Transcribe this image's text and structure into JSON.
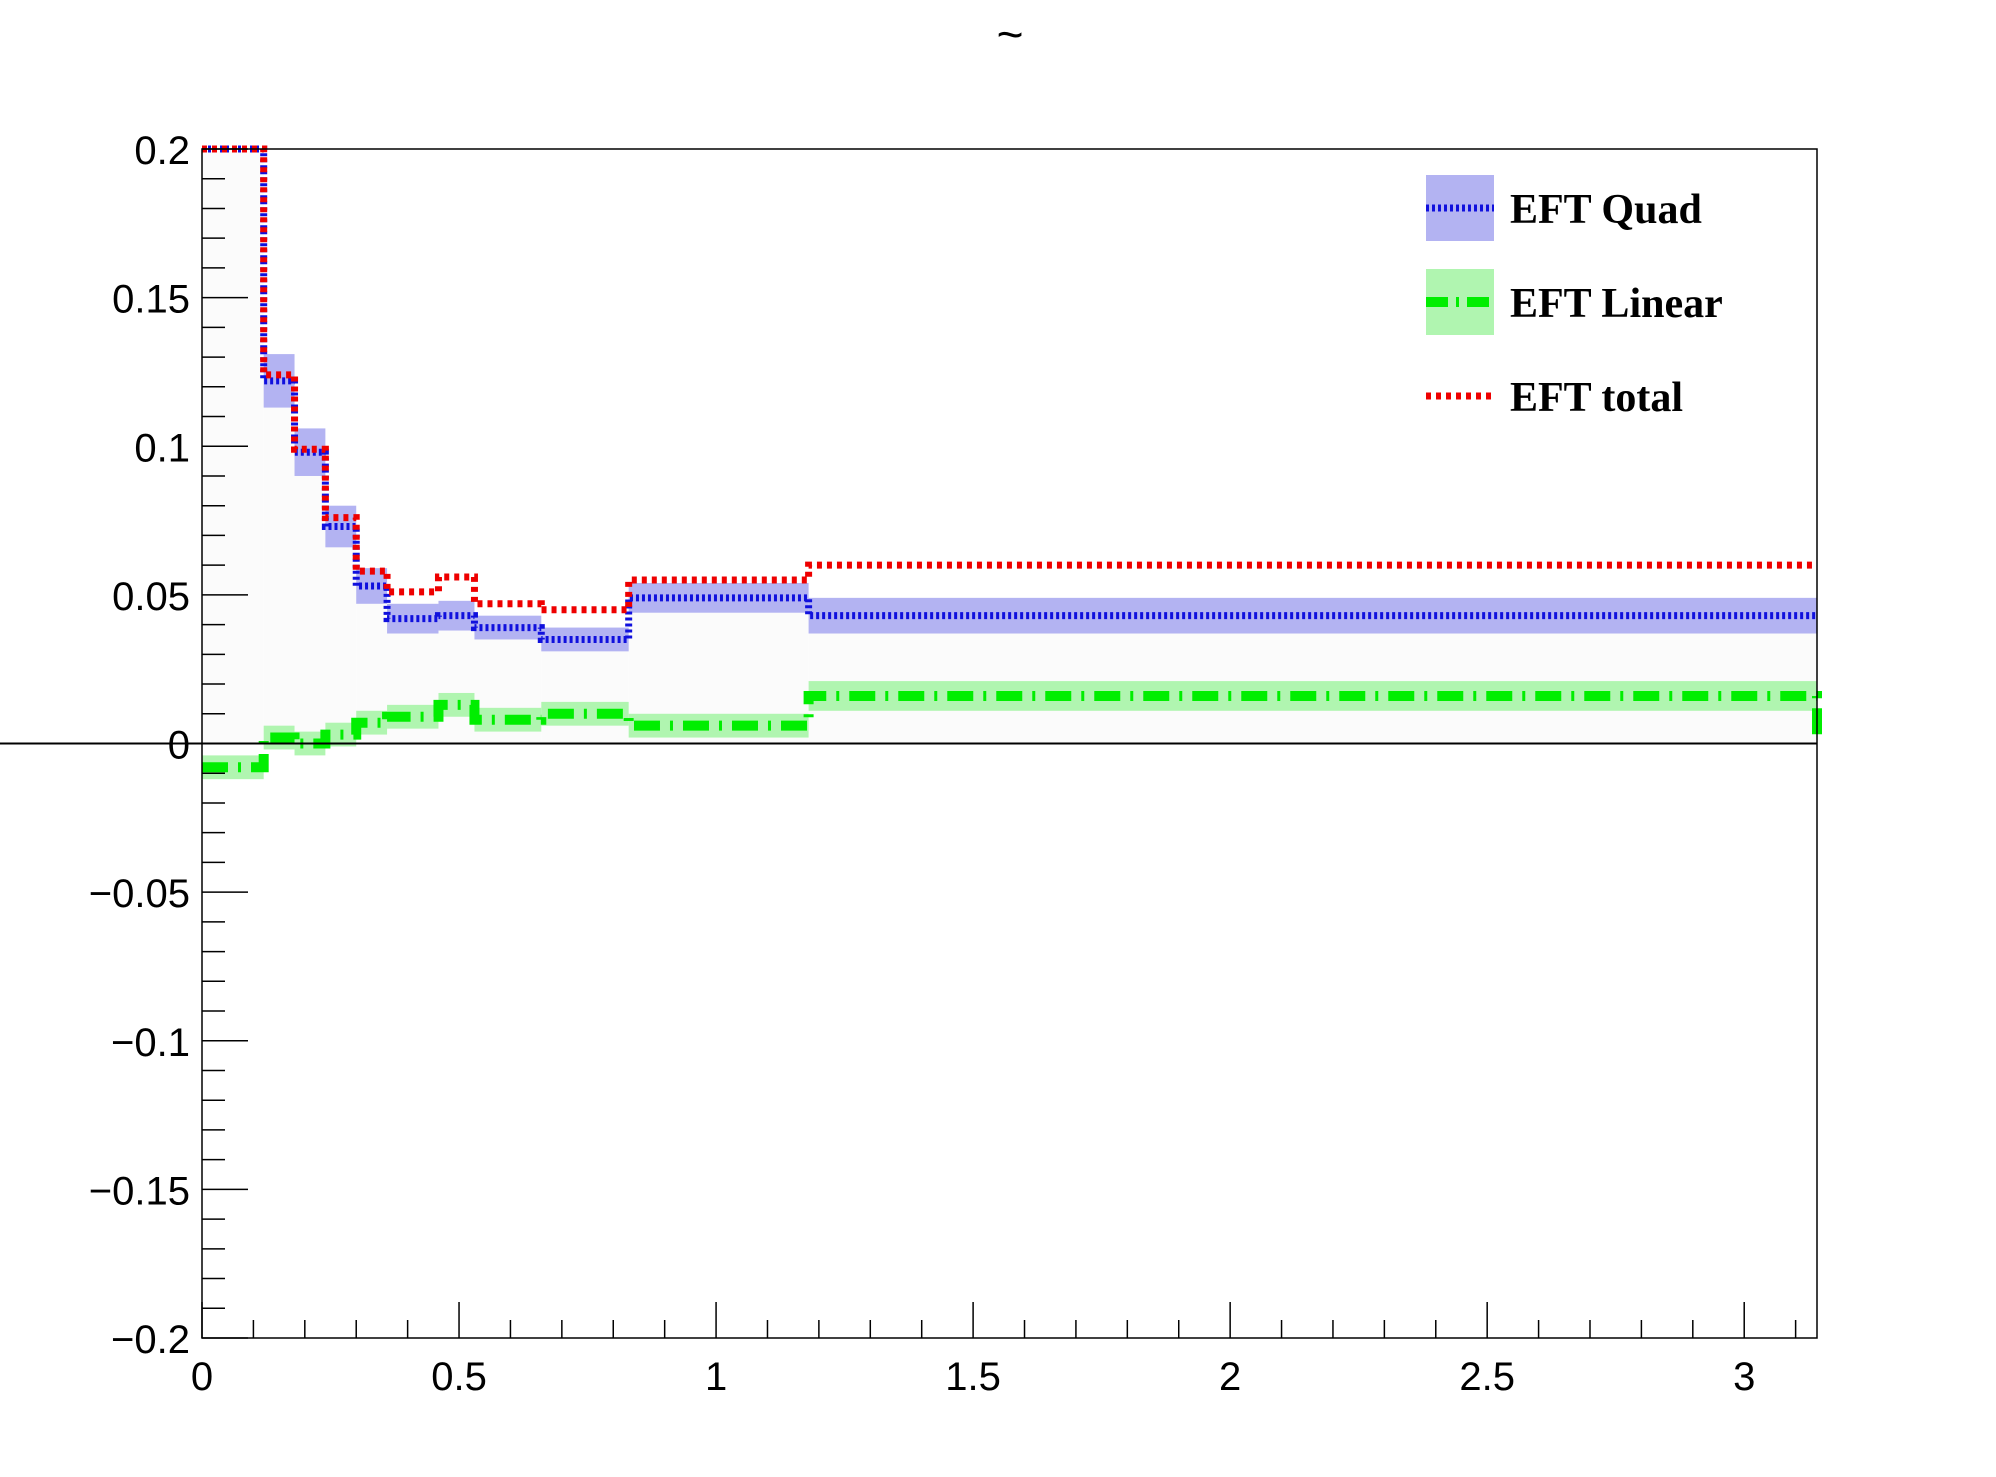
{
  "chart_data": {
    "type": "line",
    "title": "~",
    "xlabel": "",
    "ylabel": "",
    "xlim": [
      0,
      3.14159
    ],
    "ylim": [
      -0.2,
      0.2
    ],
    "grid": false,
    "legend_position": "top-right",
    "x_ticks": [
      0,
      0.5,
      1,
      1.5,
      2,
      2.5,
      3
    ],
    "x_tick_labels": [
      "0",
      "0.5",
      "1",
      "1.5",
      "2",
      "2.5",
      "3"
    ],
    "y_ticks": [
      -0.2,
      -0.15,
      -0.1,
      -0.05,
      0,
      0.05,
      0.1,
      0.15,
      0.2
    ],
    "y_tick_labels": [
      "−0.2",
      "−0.15",
      "−0.1",
      "−0.05",
      "0",
      "0.05",
      "0.1",
      "0.15",
      "0.2"
    ],
    "bin_edges": [
      0,
      0.12,
      0.18,
      0.24,
      0.3,
      0.36,
      0.46,
      0.53,
      0.66,
      0.83,
      1.18,
      3.14159
    ],
    "series": [
      {
        "name": "EFT Quad",
        "style": "dotted-band",
        "color": "#1010dd",
        "band_color": "#b3b3f2",
        "values": [
          0.2,
          0.122,
          0.098,
          0.073,
          0.053,
          0.042,
          0.043,
          0.039,
          0.035,
          0.049,
          0.043
        ],
        "errors": [
          0.0,
          0.009,
          0.008,
          0.007,
          0.006,
          0.005,
          0.005,
          0.004,
          0.004,
          0.005,
          0.006
        ]
      },
      {
        "name": "EFT Linear",
        "style": "dash-dot-band",
        "color": "#00ee00",
        "band_color": "#b0f5b0",
        "values": [
          -0.008,
          0.002,
          0.0,
          0.003,
          0.007,
          0.009,
          0.013,
          0.008,
          0.01,
          0.006,
          0.016
        ],
        "errors": [
          0.004,
          0.004,
          0.004,
          0.004,
          0.004,
          0.004,
          0.004,
          0.004,
          0.004,
          0.004,
          0.005
        ]
      },
      {
        "name": "EFT total",
        "style": "dotted",
        "color": "#ee0000",
        "values": [
          0.2,
          0.124,
          0.099,
          0.076,
          0.058,
          0.051,
          0.056,
          0.047,
          0.045,
          0.055,
          0.06
        ]
      }
    ]
  }
}
